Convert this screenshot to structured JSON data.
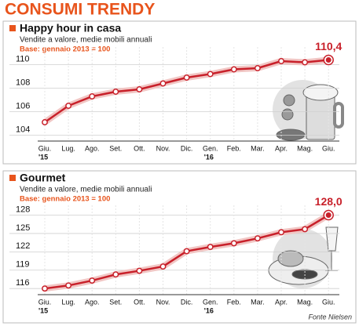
{
  "title": "CONSUMI TRENDY",
  "source": "Fonte Nielsen",
  "chart_data": [
    {
      "type": "line",
      "title": "Happy hour in casa",
      "subtitle": "Vendite a valore, medie mobili annuali",
      "base_note": "Base: gennaio 2013 = 100",
      "categories": [
        "Giu.",
        "Lug.",
        "Ago.",
        "Set.",
        "Ott.",
        "Nov.",
        "Dic.",
        "Gen.",
        "Feb.",
        "Mar.",
        "Apr.",
        "Mag.",
        "Giu."
      ],
      "category_years": [
        "'15",
        null,
        null,
        null,
        null,
        null,
        null,
        "'16",
        null,
        null,
        null,
        null,
        null
      ],
      "values": [
        105.1,
        106.5,
        107.3,
        107.7,
        107.9,
        108.4,
        108.9,
        109.2,
        109.6,
        109.7,
        110.3,
        110.2,
        110.4
      ],
      "value_labels": [
        null,
        null,
        null,
        null,
        null,
        null,
        null,
        null,
        null,
        null,
        null,
        null,
        "110,4"
      ],
      "color": "#c8202a",
      "ylim": [
        103.5,
        111.5
      ],
      "yticks": [
        104,
        106,
        108,
        110
      ]
    },
    {
      "type": "line",
      "title": "Gourmet",
      "subtitle": "Vendite a valore, medie mobili annuali",
      "base_note": "Base: gennaio 2013 = 100",
      "categories": [
        "Giu.",
        "Lug.",
        "Ago.",
        "Set.",
        "Ott.",
        "Nov.",
        "Dic.",
        "Gen.",
        "Feb.",
        "Mar.",
        "Apr.",
        "Mag.",
        "Giu."
      ],
      "category_years": [
        "'15",
        null,
        null,
        null,
        null,
        null,
        null,
        "'16",
        null,
        null,
        null,
        null,
        null
      ],
      "values": [
        116.0,
        116.5,
        117.3,
        118.3,
        118.9,
        119.6,
        122.1,
        122.8,
        123.4,
        124.2,
        125.2,
        125.7,
        128.0
      ],
      "value_labels": [
        null,
        null,
        null,
        null,
        null,
        null,
        null,
        null,
        null,
        null,
        null,
        null,
        "128,0"
      ],
      "color": "#c8202a",
      "ylim": [
        115,
        129.6
      ],
      "yticks": [
        116,
        119,
        122,
        125,
        128
      ]
    }
  ]
}
